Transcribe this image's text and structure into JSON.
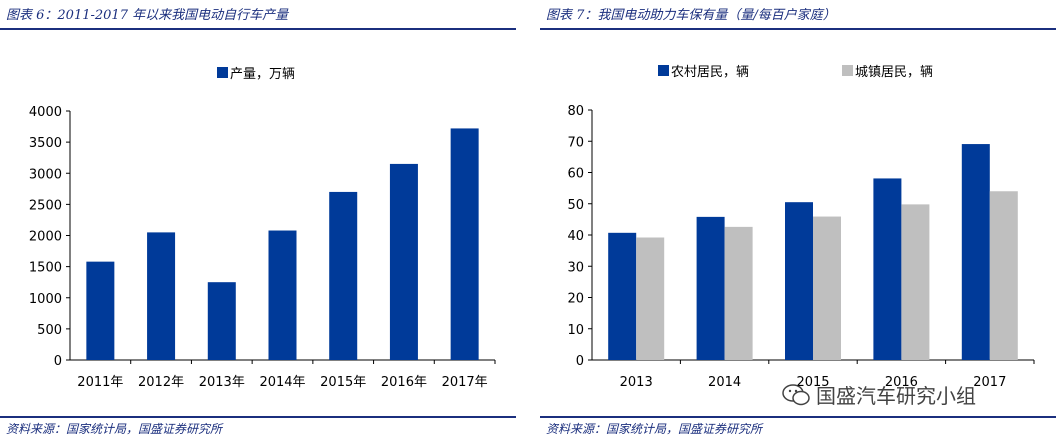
{
  "left": {
    "title": "图表 6：2011-2017 年以来我国电动自行车产量",
    "source": "资料来源：国家统计局，国盛证券研究所"
  },
  "right": {
    "title": "图表 7：我国电动助力车保有量（量/每百户家庭）",
    "source": "资料来源：国家统计局，国盛证券研究所"
  },
  "watermark": "国盛汽车研究小组",
  "colors": {
    "primary": "#003a99",
    "secondary": "#bfbfbf",
    "title": "#1b2f7e"
  },
  "chart_data": [
    {
      "type": "bar",
      "categories": [
        "2011年",
        "2012年",
        "2013年",
        "2014年",
        "2015年",
        "2016年",
        "2017年"
      ],
      "series": [
        {
          "name": "产量，万辆",
          "values": [
            1580,
            2050,
            1250,
            2080,
            2700,
            3150,
            3720
          ]
        }
      ],
      "ylim": [
        0,
        4000
      ],
      "yticks": [
        0,
        500,
        1000,
        1500,
        2000,
        2500,
        3000,
        3500,
        4000
      ],
      "legend_position": "top-center",
      "grid": false
    },
    {
      "type": "bar",
      "categories": [
        "2013",
        "2014",
        "2015",
        "2016",
        "2017"
      ],
      "series": [
        {
          "name": "农村居民，辆",
          "values": [
            40.7,
            45.8,
            50.5,
            58.1,
            69.1
          ]
        },
        {
          "name": "城镇居民，辆",
          "values": [
            39.2,
            42.6,
            45.9,
            49.8,
            54.0
          ]
        }
      ],
      "ylim": [
        0,
        80
      ],
      "yticks": [
        0,
        10,
        20,
        30,
        40,
        50,
        60,
        70,
        80
      ],
      "legend_position": "top-center",
      "grid": false
    }
  ]
}
